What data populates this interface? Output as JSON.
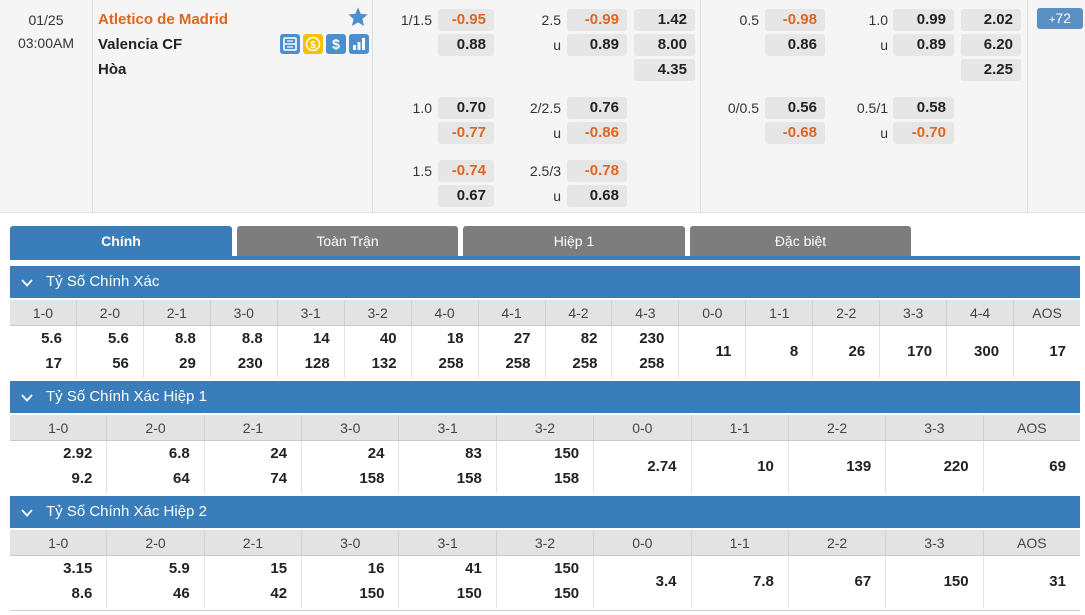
{
  "match": {
    "date": "01/25",
    "time": "03:00AM",
    "home_team": "Atletico de Madrid",
    "away_team": "Valencia CF",
    "draw_label": "Hòa",
    "more_count": "72",
    "feature_icons": [
      "stats-s-icon",
      "coin-icon",
      "dollar-icon",
      "bar-chart-icon"
    ]
  },
  "fulltime": {
    "handicap": [
      {
        "line": "1/1.5",
        "home": "-0.95",
        "away": "0.88"
      },
      {
        "line": "1.0",
        "home": "0.70",
        "away": "-0.77"
      },
      {
        "line": "1.5",
        "home": "-0.74",
        "away": "0.67"
      }
    ],
    "over_under": [
      {
        "line": "2.5",
        "over": "-0.99",
        "under_label": "u",
        "under": "0.89"
      },
      {
        "line": "2/2.5",
        "over": "0.76",
        "under_label": "u",
        "under": "-0.86"
      },
      {
        "line": "2.5/3",
        "over": "-0.78",
        "under_label": "u",
        "under": "0.68"
      }
    ],
    "one_x_two": {
      "home": "1.42",
      "away": "8.00",
      "draw": "4.35"
    }
  },
  "firsthalf": {
    "handicap": [
      {
        "line": "0.5",
        "home": "-0.98",
        "away": "0.86"
      },
      {
        "line": "0/0.5",
        "home": "0.56",
        "away": "-0.68"
      }
    ],
    "over_under": [
      {
        "line": "1.0",
        "over": "0.99",
        "under_label": "u",
        "under": "0.89"
      },
      {
        "line": "0.5/1",
        "over": "0.58",
        "under_label": "u",
        "under": "-0.70"
      }
    ],
    "one_x_two": {
      "home": "2.02",
      "away": "6.20",
      "draw": "2.25"
    }
  },
  "tabs": [
    {
      "label": "Chính",
      "active": true
    },
    {
      "label": "Toàn Trận",
      "active": false
    },
    {
      "label": "Hiệp 1",
      "active": false
    },
    {
      "label": "Đặc biệt",
      "active": false
    }
  ],
  "sections": [
    {
      "title": "Tỷ Số Chính Xác",
      "headers": [
        "1-0",
        "2-0",
        "2-1",
        "3-0",
        "3-1",
        "3-2",
        "4-0",
        "4-1",
        "4-2",
        "4-3",
        "0-0",
        "1-1",
        "2-2",
        "3-3",
        "4-4",
        "AOS"
      ],
      "cells": [
        [
          "5.6",
          "17"
        ],
        [
          "5.6",
          "56"
        ],
        [
          "8.8",
          "29"
        ],
        [
          "8.8",
          "230"
        ],
        [
          "14",
          "128"
        ],
        [
          "40",
          "132"
        ],
        [
          "18",
          "258"
        ],
        [
          "27",
          "258"
        ],
        [
          "82",
          "258"
        ],
        [
          "230",
          "258"
        ],
        [
          "11"
        ],
        [
          "8"
        ],
        [
          "26"
        ],
        [
          "170"
        ],
        [
          "300"
        ],
        [
          "17"
        ]
      ]
    },
    {
      "title": "Tỷ Số Chính Xác Hiệp 1",
      "headers": [
        "1-0",
        "2-0",
        "2-1",
        "3-0",
        "3-1",
        "3-2",
        "0-0",
        "1-1",
        "2-2",
        "3-3",
        "AOS"
      ],
      "cells": [
        [
          "2.92",
          "9.2"
        ],
        [
          "6.8",
          "64"
        ],
        [
          "24",
          "74"
        ],
        [
          "24",
          "158"
        ],
        [
          "83",
          "158"
        ],
        [
          "150",
          "158"
        ],
        [
          "2.74"
        ],
        [
          "10"
        ],
        [
          "139"
        ],
        [
          "220"
        ],
        [
          "69"
        ]
      ]
    },
    {
      "title": "Tỷ Số Chính Xác Hiệp 2",
      "headers": [
        "1-0",
        "2-0",
        "2-1",
        "3-0",
        "3-1",
        "3-2",
        "0-0",
        "1-1",
        "2-2",
        "3-3",
        "AOS"
      ],
      "cells": [
        [
          "3.15",
          "8.6"
        ],
        [
          "5.9",
          "46"
        ],
        [
          "15",
          "42"
        ],
        [
          "16",
          "150"
        ],
        [
          "41",
          "150"
        ],
        [
          "150",
          "150"
        ],
        [
          "3.4"
        ],
        [
          "7.8"
        ],
        [
          "67"
        ],
        [
          "150"
        ],
        [
          "31"
        ]
      ]
    }
  ],
  "colors": {
    "accent_blue": "#3a7dbb",
    "negative_orange": "#e0651f",
    "tab_inactive": "#7d7d7d"
  }
}
